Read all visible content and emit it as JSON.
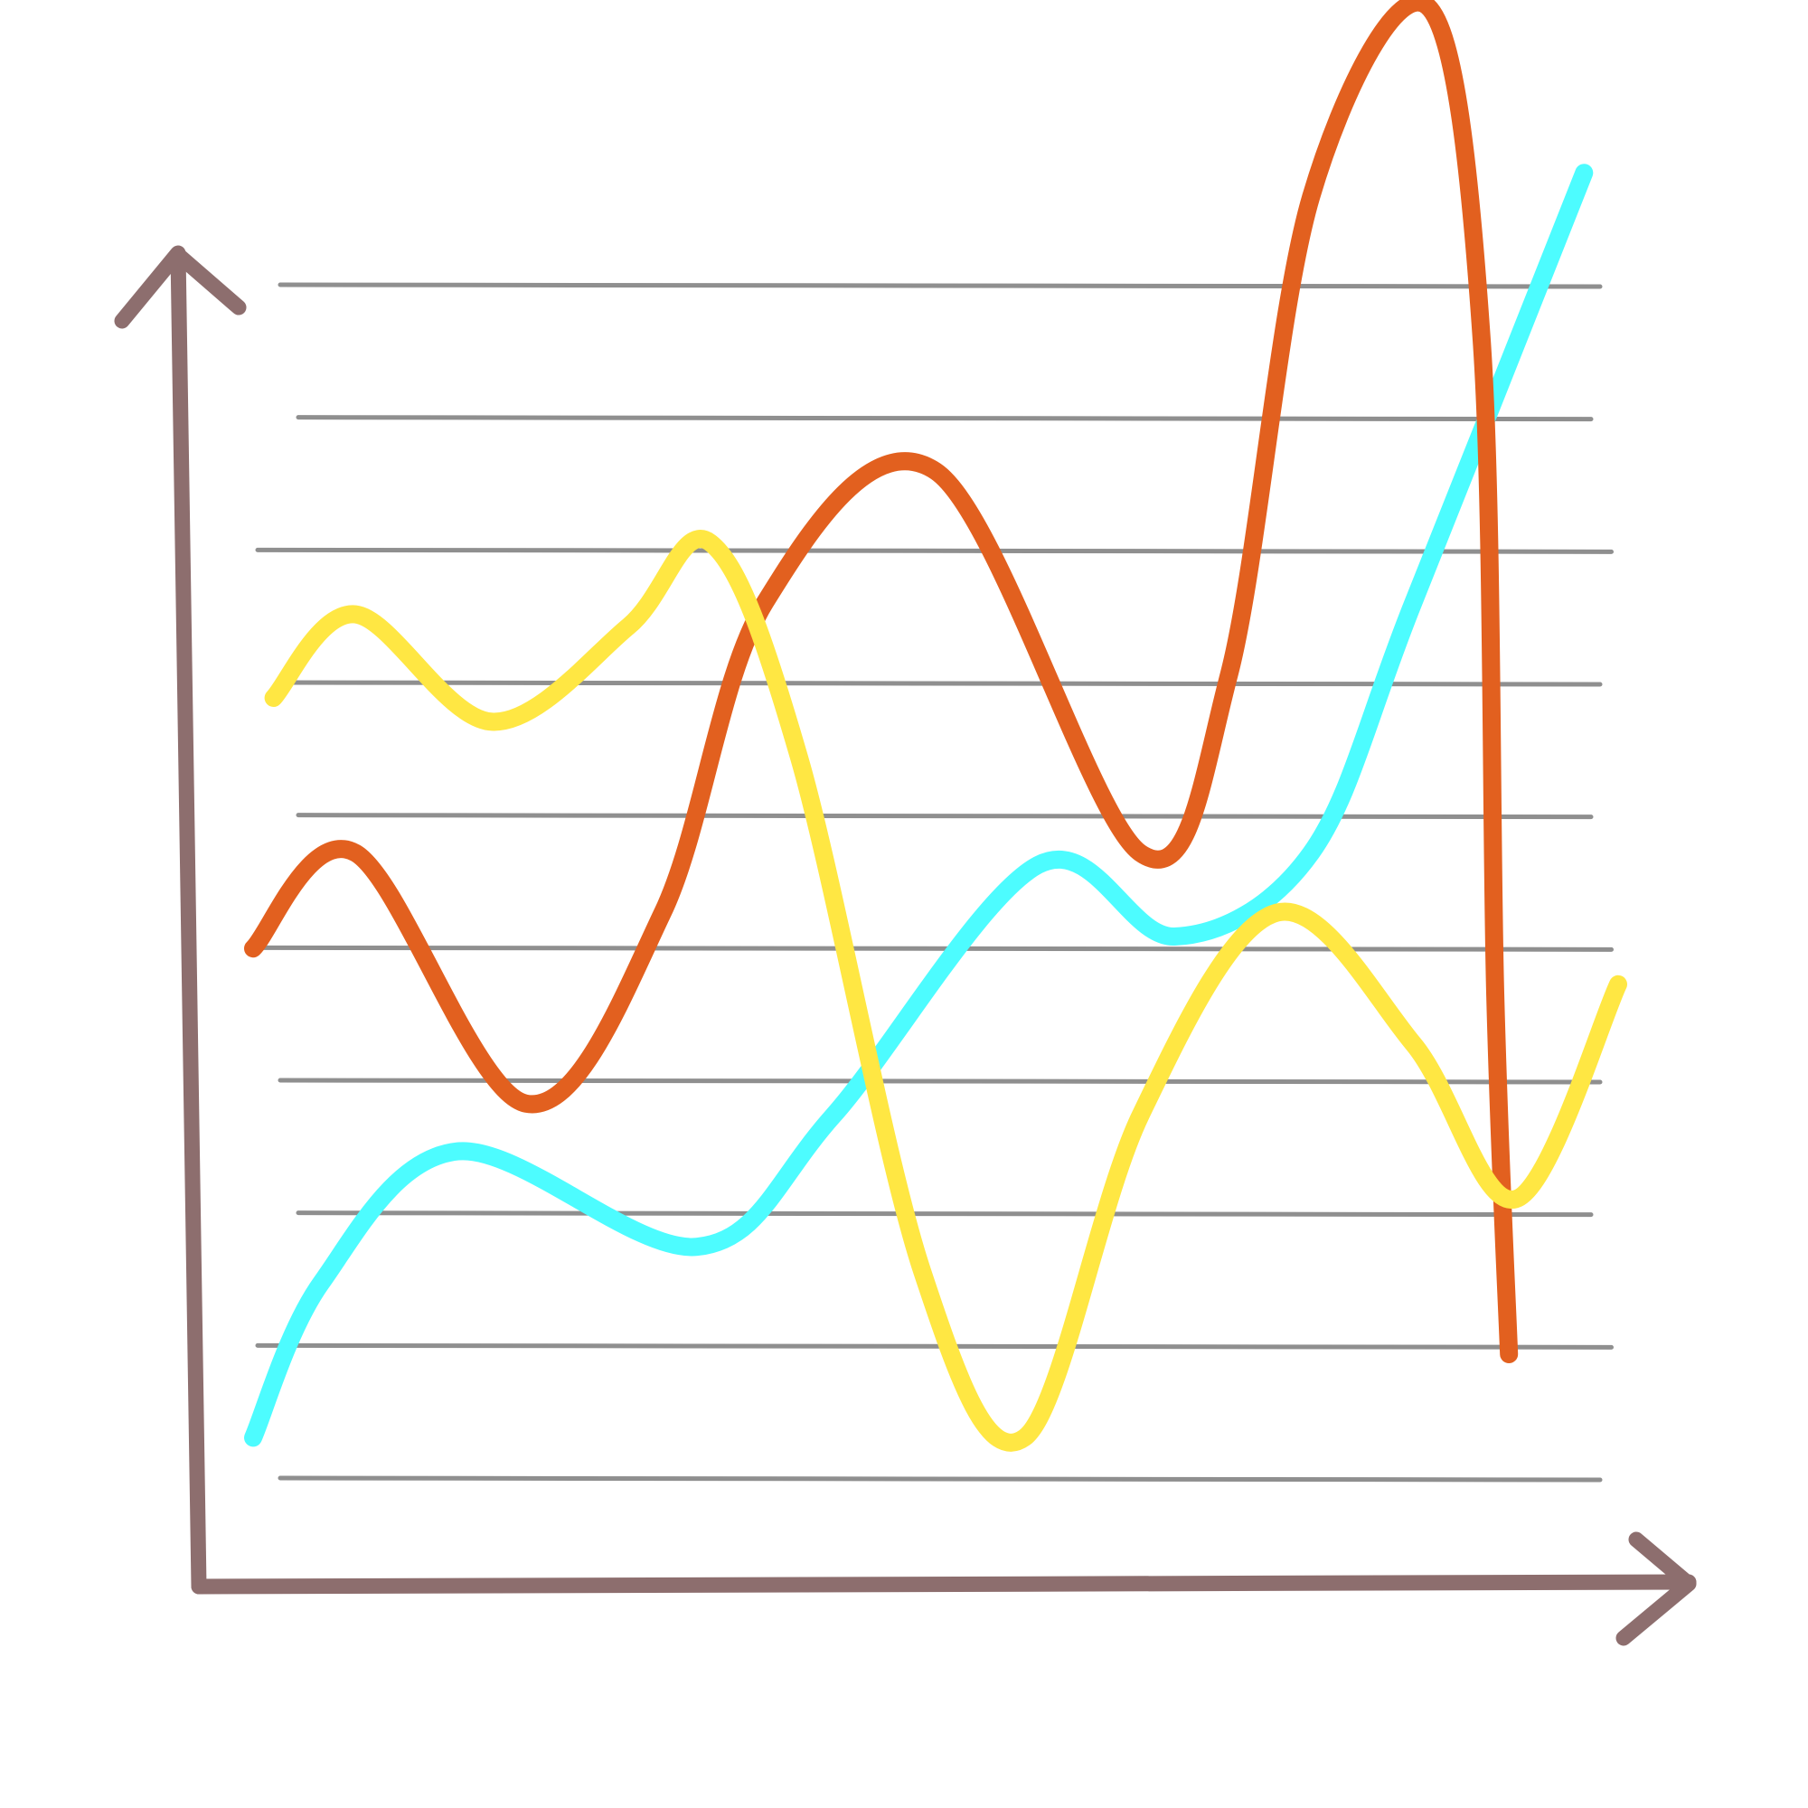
{
  "chart_data": {
    "type": "line",
    "title": "",
    "xlabel": "",
    "ylabel": "",
    "grid": true,
    "gridlines": 10,
    "legend": "none",
    "tick_labels": false,
    "xlim": [
      0,
      20
    ],
    "ylim": [
      0,
      10
    ],
    "axis_color": "#8d6e6e",
    "grid_color": "#8f8f8f",
    "series": [
      {
        "color": "#4dfcff",
        "points": [
          [
            0,
            0.3
          ],
          [
            1,
            1.6
          ],
          [
            3,
            2.7
          ],
          [
            6.5,
            1.9
          ],
          [
            8.5,
            3
          ],
          [
            11.5,
            5.1
          ],
          [
            13.5,
            4.5
          ],
          [
            15.5,
            5.2
          ],
          [
            17,
            7.3
          ],
          [
            19.5,
            10.9
          ]
        ]
      },
      {
        "color": "#e2601f",
        "points": [
          [
            0,
            4.4
          ],
          [
            1.5,
            5.2
          ],
          [
            4,
            3.1
          ],
          [
            6,
            4.7
          ],
          [
            7.5,
            7.3
          ],
          [
            10,
            8.4
          ],
          [
            13,
            5.2
          ],
          [
            14.3,
            6.7
          ],
          [
            15.5,
            10.7
          ],
          [
            17.2,
            12.3
          ],
          [
            18,
            9.5
          ],
          [
            18.2,
            4
          ],
          [
            18.4,
            1
          ]
        ]
      },
      {
        "color": "#ffe743",
        "points": [
          [
            0.3,
            6.5
          ],
          [
            1.5,
            7.2
          ],
          [
            3.5,
            6.3
          ],
          [
            5.5,
            7.1
          ],
          [
            6.7,
            7.8
          ],
          [
            8,
            6
          ],
          [
            9.8,
            1.7
          ],
          [
            11.3,
            0.3
          ],
          [
            13,
            3
          ],
          [
            15,
            4.7
          ],
          [
            17,
            3.6
          ],
          [
            18.5,
            2.3
          ],
          [
            20,
            4.1
          ]
        ]
      }
    ]
  }
}
